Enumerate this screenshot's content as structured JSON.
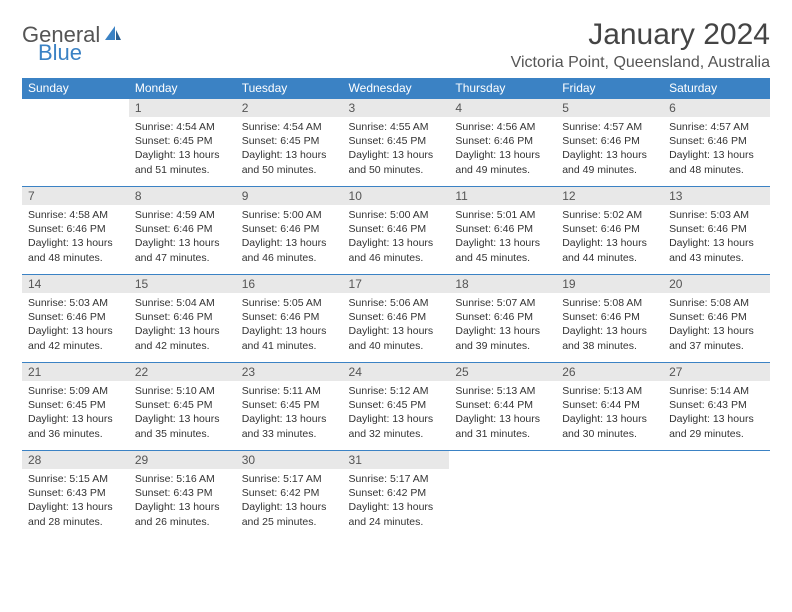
{
  "logo": {
    "text1": "General",
    "text2": "Blue"
  },
  "title": "January 2024",
  "location": "Victoria Point, Queensland, Australia",
  "weekdays": [
    "Sunday",
    "Monday",
    "Tuesday",
    "Wednesday",
    "Thursday",
    "Friday",
    "Saturday"
  ],
  "colors": {
    "header_bg": "#3b82c4",
    "header_text": "#ffffff",
    "daynum_bg": "#e8e8e8",
    "border": "#3b82c4"
  },
  "start_offset": 1,
  "days": [
    {
      "n": "1",
      "sunrise": "4:54 AM",
      "sunset": "6:45 PM",
      "daylight": "13 hours and 51 minutes."
    },
    {
      "n": "2",
      "sunrise": "4:54 AM",
      "sunset": "6:45 PM",
      "daylight": "13 hours and 50 minutes."
    },
    {
      "n": "3",
      "sunrise": "4:55 AM",
      "sunset": "6:45 PM",
      "daylight": "13 hours and 50 minutes."
    },
    {
      "n": "4",
      "sunrise": "4:56 AM",
      "sunset": "6:46 PM",
      "daylight": "13 hours and 49 minutes."
    },
    {
      "n": "5",
      "sunrise": "4:57 AM",
      "sunset": "6:46 PM",
      "daylight": "13 hours and 49 minutes."
    },
    {
      "n": "6",
      "sunrise": "4:57 AM",
      "sunset": "6:46 PM",
      "daylight": "13 hours and 48 minutes."
    },
    {
      "n": "7",
      "sunrise": "4:58 AM",
      "sunset": "6:46 PM",
      "daylight": "13 hours and 48 minutes."
    },
    {
      "n": "8",
      "sunrise": "4:59 AM",
      "sunset": "6:46 PM",
      "daylight": "13 hours and 47 minutes."
    },
    {
      "n": "9",
      "sunrise": "5:00 AM",
      "sunset": "6:46 PM",
      "daylight": "13 hours and 46 minutes."
    },
    {
      "n": "10",
      "sunrise": "5:00 AM",
      "sunset": "6:46 PM",
      "daylight": "13 hours and 46 minutes."
    },
    {
      "n": "11",
      "sunrise": "5:01 AM",
      "sunset": "6:46 PM",
      "daylight": "13 hours and 45 minutes."
    },
    {
      "n": "12",
      "sunrise": "5:02 AM",
      "sunset": "6:46 PM",
      "daylight": "13 hours and 44 minutes."
    },
    {
      "n": "13",
      "sunrise": "5:03 AM",
      "sunset": "6:46 PM",
      "daylight": "13 hours and 43 minutes."
    },
    {
      "n": "14",
      "sunrise": "5:03 AM",
      "sunset": "6:46 PM",
      "daylight": "13 hours and 42 minutes."
    },
    {
      "n": "15",
      "sunrise": "5:04 AM",
      "sunset": "6:46 PM",
      "daylight": "13 hours and 42 minutes."
    },
    {
      "n": "16",
      "sunrise": "5:05 AM",
      "sunset": "6:46 PM",
      "daylight": "13 hours and 41 minutes."
    },
    {
      "n": "17",
      "sunrise": "5:06 AM",
      "sunset": "6:46 PM",
      "daylight": "13 hours and 40 minutes."
    },
    {
      "n": "18",
      "sunrise": "5:07 AM",
      "sunset": "6:46 PM",
      "daylight": "13 hours and 39 minutes."
    },
    {
      "n": "19",
      "sunrise": "5:08 AM",
      "sunset": "6:46 PM",
      "daylight": "13 hours and 38 minutes."
    },
    {
      "n": "20",
      "sunrise": "5:08 AM",
      "sunset": "6:46 PM",
      "daylight": "13 hours and 37 minutes."
    },
    {
      "n": "21",
      "sunrise": "5:09 AM",
      "sunset": "6:45 PM",
      "daylight": "13 hours and 36 minutes."
    },
    {
      "n": "22",
      "sunrise": "5:10 AM",
      "sunset": "6:45 PM",
      "daylight": "13 hours and 35 minutes."
    },
    {
      "n": "23",
      "sunrise": "5:11 AM",
      "sunset": "6:45 PM",
      "daylight": "13 hours and 33 minutes."
    },
    {
      "n": "24",
      "sunrise": "5:12 AM",
      "sunset": "6:45 PM",
      "daylight": "13 hours and 32 minutes."
    },
    {
      "n": "25",
      "sunrise": "5:13 AM",
      "sunset": "6:44 PM",
      "daylight": "13 hours and 31 minutes."
    },
    {
      "n": "26",
      "sunrise": "5:13 AM",
      "sunset": "6:44 PM",
      "daylight": "13 hours and 30 minutes."
    },
    {
      "n": "27",
      "sunrise": "5:14 AM",
      "sunset": "6:43 PM",
      "daylight": "13 hours and 29 minutes."
    },
    {
      "n": "28",
      "sunrise": "5:15 AM",
      "sunset": "6:43 PM",
      "daylight": "13 hours and 28 minutes."
    },
    {
      "n": "29",
      "sunrise": "5:16 AM",
      "sunset": "6:43 PM",
      "daylight": "13 hours and 26 minutes."
    },
    {
      "n": "30",
      "sunrise": "5:17 AM",
      "sunset": "6:42 PM",
      "daylight": "13 hours and 25 minutes."
    },
    {
      "n": "31",
      "sunrise": "5:17 AM",
      "sunset": "6:42 PM",
      "daylight": "13 hours and 24 minutes."
    }
  ],
  "labels": {
    "sunrise": "Sunrise:",
    "sunset": "Sunset:",
    "daylight": "Daylight:"
  }
}
